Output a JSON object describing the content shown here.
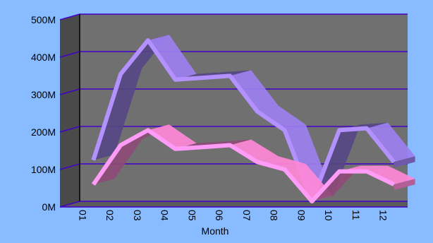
{
  "chart_data": {
    "type": "line",
    "title": "",
    "xlabel": "Month",
    "ylabel": "",
    "categories": [
      "01",
      "02",
      "03",
      "04",
      "05",
      "06",
      "07",
      "08",
      "09",
      "10",
      "11",
      "12"
    ],
    "y_tick_labels": [
      "0M",
      "100M",
      "200M",
      "300M",
      "400M",
      "500M"
    ],
    "ylim": [
      0,
      500000000
    ],
    "grid": true,
    "legend": "none",
    "series": [
      {
        "values": [
          110000000,
          340000000,
          430000000,
          325000000,
          330000000,
          335000000,
          240000000,
          190000000,
          0,
          190000000,
          195000000,
          105000000
        ],
        "color": "#9c7ff0"
      },
      {
        "values": [
          45000000,
          150000000,
          190000000,
          140000000,
          145000000,
          150000000,
          105000000,
          85000000,
          0,
          80000000,
          80000000,
          45000000
        ],
        "color": "#ff88d8"
      }
    ],
    "colors": {
      "background": "#88bbff",
      "plot_wall": "#707070",
      "side_wall": "#4a4a4a",
      "floor": "#5a5a5a",
      "gridline": "#4400cc"
    }
  }
}
